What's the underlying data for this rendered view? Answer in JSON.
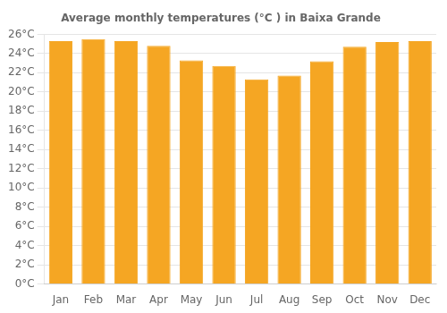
{
  "chart_data": {
    "type": "bar",
    "title": "Average monthly temperatures (°C ) in Baixa Grande",
    "categories": [
      "Jan",
      "Feb",
      "Mar",
      "Apr",
      "May",
      "Jun",
      "Jul",
      "Aug",
      "Sep",
      "Oct",
      "Nov",
      "Dec"
    ],
    "values": [
      25.3,
      25.5,
      25.3,
      24.8,
      23.3,
      22.7,
      21.3,
      21.7,
      23.2,
      24.7,
      25.2,
      25.3
    ],
    "color": "#F5A623",
    "ylim": [
      0,
      26
    ],
    "yticks": [
      {
        "value": 0,
        "label": "0°C"
      },
      {
        "value": 2,
        "label": "2°C"
      },
      {
        "value": 4,
        "label": "4°C"
      },
      {
        "value": 6,
        "label": "6°C"
      },
      {
        "value": 8,
        "label": "8°C"
      },
      {
        "value": 10,
        "label": "10°C"
      },
      {
        "value": 12,
        "label": "12°C"
      },
      {
        "value": 14,
        "label": "14°C"
      },
      {
        "value": 16,
        "label": "16°C"
      },
      {
        "value": 18,
        "label": "18°C"
      },
      {
        "value": 20,
        "label": "20°C"
      },
      {
        "value": 22,
        "label": "22°C"
      },
      {
        "value": 24,
        "label": "24°C"
      },
      {
        "value": 26,
        "label": "26°C"
      }
    ],
    "grid": true
  }
}
